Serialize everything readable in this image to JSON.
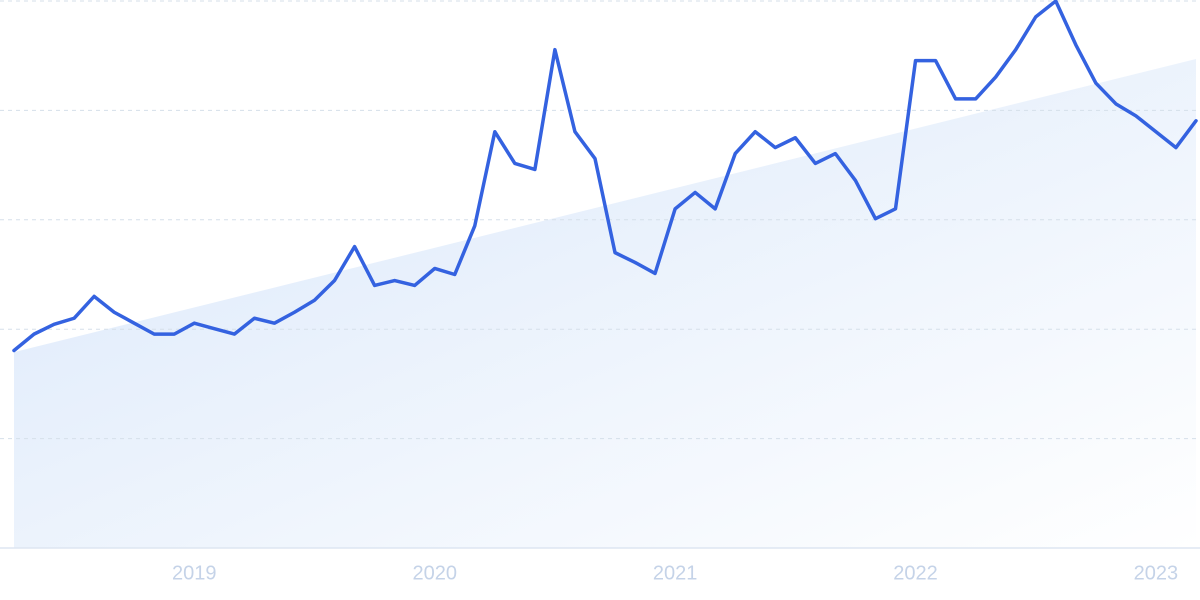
{
  "chart_data": {
    "type": "line",
    "categories": [
      null,
      null,
      null,
      null,
      null,
      null,
      null,
      null,
      null,
      "2019",
      null,
      null,
      null,
      null,
      null,
      null,
      null,
      null,
      null,
      null,
      null,
      "2020",
      null,
      null,
      null,
      null,
      null,
      null,
      null,
      null,
      null,
      null,
      null,
      "2021",
      null,
      null,
      null,
      null,
      null,
      null,
      null,
      null,
      null,
      null,
      null,
      "2022",
      null,
      null,
      null,
      null,
      null,
      null,
      null,
      null,
      null,
      null,
      null,
      "2023",
      null,
      null
    ],
    "series": [
      {
        "color": "#3462e0",
        "values": [
          36.1,
          39.1,
          40.9,
          42.0,
          46.0,
          43.1,
          41.1,
          39.1,
          39.1,
          41.1,
          40.1,
          39.1,
          42.0,
          41.1,
          43.1,
          45.3,
          48.9,
          55.1,
          48.0,
          48.9,
          48.0,
          51.1,
          50.0,
          58.9,
          76.1,
          70.3,
          69.2,
          91.1,
          76.1,
          71.2,
          54.0,
          52.2,
          50.2,
          62.0,
          65.0,
          62.0,
          72.1,
          76.1,
          73.2,
          75.0,
          70.3,
          72.1,
          67.2,
          60.2,
          62.0,
          89.1,
          89.1,
          82.1,
          82.1,
          86.1,
          91.1,
          97.1,
          100,
          92.0,
          85.0,
          81.2,
          79.0,
          76.1,
          73.2,
          78.1
        ]
      }
    ],
    "trend": [
      35.8,
      89.4
    ],
    "ylim": [
      0,
      100
    ],
    "grid_values": [
      20,
      40,
      60,
      80,
      100
    ],
    "grid": true
  }
}
